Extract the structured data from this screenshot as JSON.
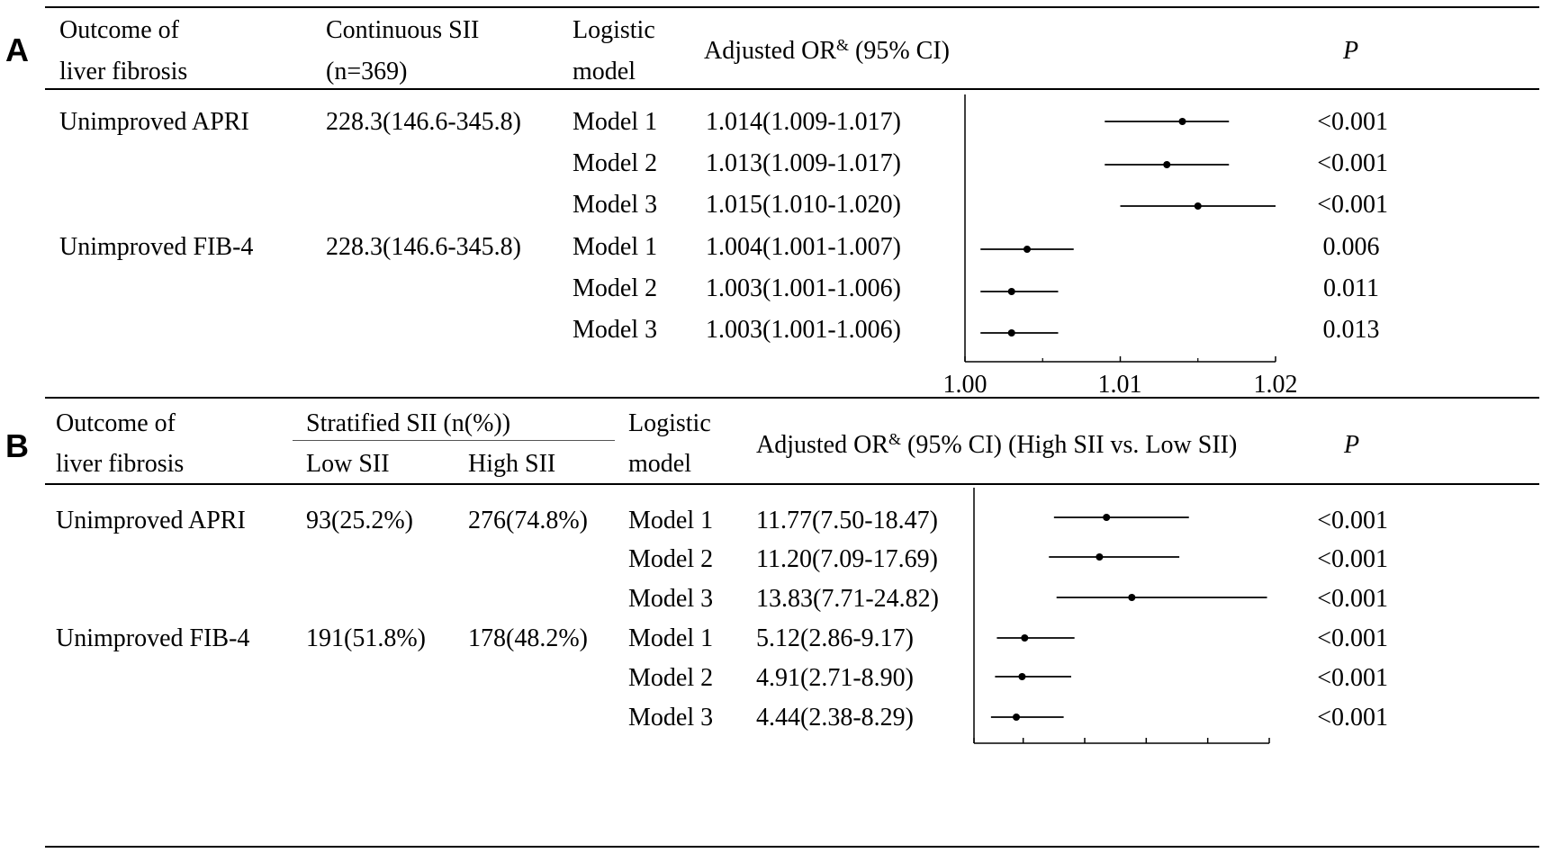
{
  "panels": [
    {
      "label": "A",
      "headers": {
        "outcome": [
          "Outcome of",
          "liver fibrosis"
        ],
        "sii": [
          "Continuous SII",
          "(n=369)"
        ],
        "model": [
          "Logistic",
          "model"
        ],
        "or_prefix": "Adjusted OR",
        "or_sup": "&",
        "or_suffix": " (95% CI)",
        "p": "P"
      },
      "outcomes": [
        {
          "name": "Unimproved APRI",
          "sii": "228.3(146.6-345.8)"
        },
        {
          "name": "Unimproved FIB-4",
          "sii": "228.3(146.6-345.8)"
        }
      ],
      "rows": [
        {
          "model": "Model 1",
          "or_text": "1.014(1.009-1.017)",
          "p": "<0.001"
        },
        {
          "model": "Model 2",
          "or_text": "1.013(1.009-1.017)",
          "p": "<0.001"
        },
        {
          "model": "Model 3",
          "or_text": "1.015(1.010-1.020)",
          "p": "<0.001"
        },
        {
          "model": "Model 1",
          "or_text": "1.004(1.001-1.007)",
          "p": "0.006"
        },
        {
          "model": "Model 2",
          "or_text": "1.003(1.001-1.006)",
          "p": "0.011"
        },
        {
          "model": "Model 3",
          "or_text": "1.003(1.001-1.006)",
          "p": "0.013"
        }
      ],
      "axis_ticks": [
        "1.00",
        "1.01",
        "1.02"
      ]
    },
    {
      "label": "B",
      "headers": {
        "outcome": [
          "Outcome of",
          "liver fibrosis"
        ],
        "sii": "Stratified SII (n(%))",
        "low": "Low SII",
        "high": "High SII",
        "model": [
          "Logistic",
          "model"
        ],
        "or_prefix": "Adjusted OR",
        "or_sup": "&",
        "or_suffix": " (95% CI) (High SII vs. Low SII)",
        "p": "P"
      },
      "outcomes": [
        {
          "name": "Unimproved APRI",
          "low": "93(25.2%)",
          "high": "276(74.8%)"
        },
        {
          "name": "Unimproved FIB-4",
          "low": "191(51.8%)",
          "high": "178(48.2%)"
        }
      ],
      "rows": [
        {
          "model": "Model 1",
          "or_text": "11.77(7.50-18.47)",
          "p": "<0.001"
        },
        {
          "model": "Model 2",
          "or_text": "11.20(7.09-17.69)",
          "p": "<0.001"
        },
        {
          "model": "Model 3",
          "or_text": "13.83(7.71-24.82)",
          "p": "<0.001"
        },
        {
          "model": "Model 1",
          "or_text": "5.12(2.86-9.17)",
          "p": "<0.001"
        },
        {
          "model": "Model 2",
          "or_text": "4.91(2.71-8.90)",
          "p": "<0.001"
        },
        {
          "model": "Model 3",
          "or_text": "4.44(2.38-8.29)",
          "p": "<0.001"
        }
      ],
      "axis_ticks": [
        "1",
        "5",
        "10",
        "15",
        "20",
        "25"
      ]
    }
  ],
  "chart_data": [
    {
      "type": "scatter",
      "title": "",
      "xlabel": "",
      "ylabel": "",
      "xlim": [
        1.0,
        1.02
      ],
      "x_ticks": [
        1.0,
        1.01,
        1.02
      ],
      "series": [
        {
          "categories": [
            "Unimproved APRI Model 1",
            "Unimproved APRI Model 2",
            "Unimproved APRI Model 3",
            "Unimproved FIB-4 Model 1",
            "Unimproved FIB-4 Model 2",
            "Unimproved FIB-4 Model 3"
          ],
          "or": [
            1.014,
            1.013,
            1.015,
            1.004,
            1.003,
            1.003
          ],
          "lower": [
            1.009,
            1.009,
            1.01,
            1.001,
            1.001,
            1.001
          ],
          "upper": [
            1.017,
            1.017,
            1.02,
            1.007,
            1.006,
            1.006
          ]
        }
      ]
    },
    {
      "type": "scatter",
      "title": "",
      "xlabel": "",
      "ylabel": "",
      "xlim": [
        1,
        25
      ],
      "x_ticks": [
        1,
        5,
        10,
        15,
        20,
        25
      ],
      "series": [
        {
          "categories": [
            "Unimproved APRI Model 1",
            "Unimproved APRI Model 2",
            "Unimproved APRI Model 3",
            "Unimproved FIB-4 Model 1",
            "Unimproved FIB-4 Model 2",
            "Unimproved FIB-4 Model 3"
          ],
          "or": [
            11.77,
            11.2,
            13.83,
            5.12,
            4.91,
            4.44
          ],
          "lower": [
            7.5,
            7.09,
            7.71,
            2.86,
            2.71,
            2.38
          ],
          "upper": [
            18.47,
            17.69,
            24.82,
            9.17,
            8.9,
            8.29
          ]
        }
      ]
    }
  ]
}
